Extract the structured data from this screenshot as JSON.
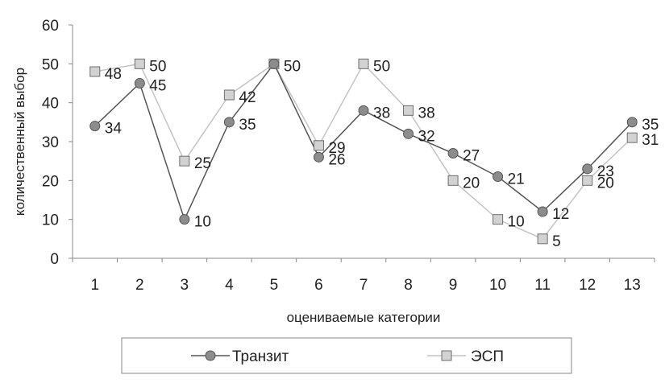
{
  "chart_data": {
    "type": "line",
    "title": "",
    "xlabel": "оцениваемые категории",
    "ylabel": "количественный выбор",
    "categories": [
      "1",
      "2",
      "3",
      "4",
      "5",
      "6",
      "7",
      "8",
      "9",
      "10",
      "11",
      "12",
      "13"
    ],
    "ylim": [
      0,
      60
    ],
    "yticks": [
      "0",
      "10",
      "20",
      "30",
      "40",
      "50",
      "60"
    ],
    "grid": false,
    "legend_position": "bottom",
    "series": [
      {
        "name": "Транзит",
        "marker": "circle",
        "line_color": "#555555",
        "marker_fill": "#8c8c8c",
        "values": [
          34,
          45,
          10,
          35,
          50,
          26,
          38,
          32,
          27,
          21,
          12,
          23,
          35
        ],
        "labels": [
          "34",
          "45",
          "10",
          "35",
          "50",
          "26",
          "38",
          "32",
          "27",
          "21",
          "12",
          "23",
          "35"
        ]
      },
      {
        "name": "ЭСП",
        "marker": "square",
        "line_color": "#c4c4c4",
        "marker_fill": "#d2d2d2",
        "values": [
          48,
          50,
          25,
          42,
          50,
          29,
          50,
          38,
          20,
          10,
          5,
          20,
          31
        ],
        "labels": [
          "48",
          "50",
          "25",
          "42",
          "",
          "29",
          "50",
          "38",
          "20",
          "10",
          "5",
          "20",
          "31"
        ]
      }
    ]
  }
}
